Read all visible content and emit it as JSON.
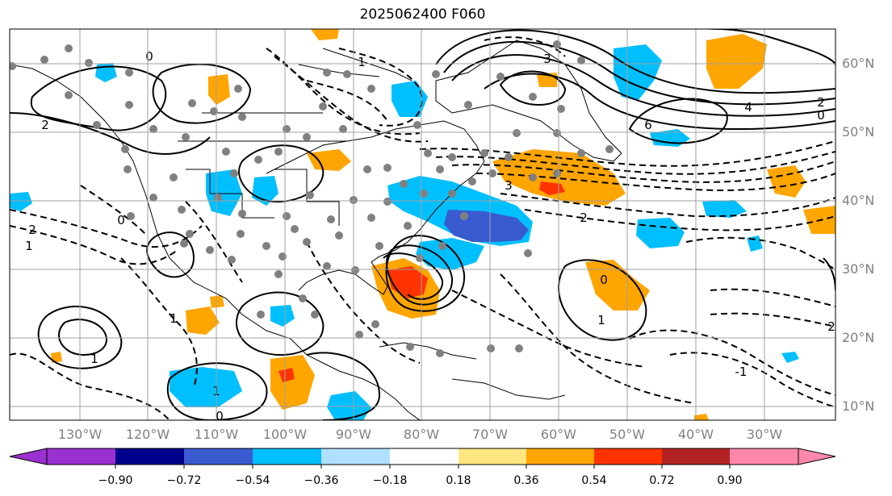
{
  "title": "2025062400 F060",
  "map": {
    "lat_labels": [
      "60°N",
      "50°N",
      "40°N",
      "30°N",
      "20°N",
      "10°N"
    ],
    "lon_labels": [
      "130°W",
      "120°W",
      "110°W",
      "100°W",
      "90°W",
      "80°W",
      "70°W",
      "60°W",
      "50°W",
      "40°W",
      "30°W"
    ],
    "contour_labels": [
      "3",
      "2",
      "0",
      "6",
      "4",
      "2",
      "3",
      "2",
      "1",
      "0",
      "2",
      "1",
      "1",
      "0",
      "1",
      "-1",
      "2",
      "1",
      "1",
      "0",
      "0"
    ],
    "gridline_color": "#a0a0a0",
    "label_color": "#808080"
  },
  "colorbar": {
    "ticks": [
      "−0.90",
      "−0.72",
      "−0.54",
      "−0.36",
      "−0.18",
      "0.18",
      "0.36",
      "0.54",
      "0.72",
      "0.90"
    ],
    "colors": [
      "#9b30d0",
      "#00008b",
      "#3a5bd0",
      "#00bfff",
      "#b0e0ff",
      "#ffffff",
      "#ffe680",
      "#ffa500",
      "#ff3300",
      "#b22222",
      "#ff88aa"
    ]
  },
  "fill_colors": {
    "light_blue": "#00bfff",
    "medium_blue": "#3a5bd0",
    "orange": "#ffa500",
    "red": "#ff3300",
    "dots": "#808080"
  }
}
